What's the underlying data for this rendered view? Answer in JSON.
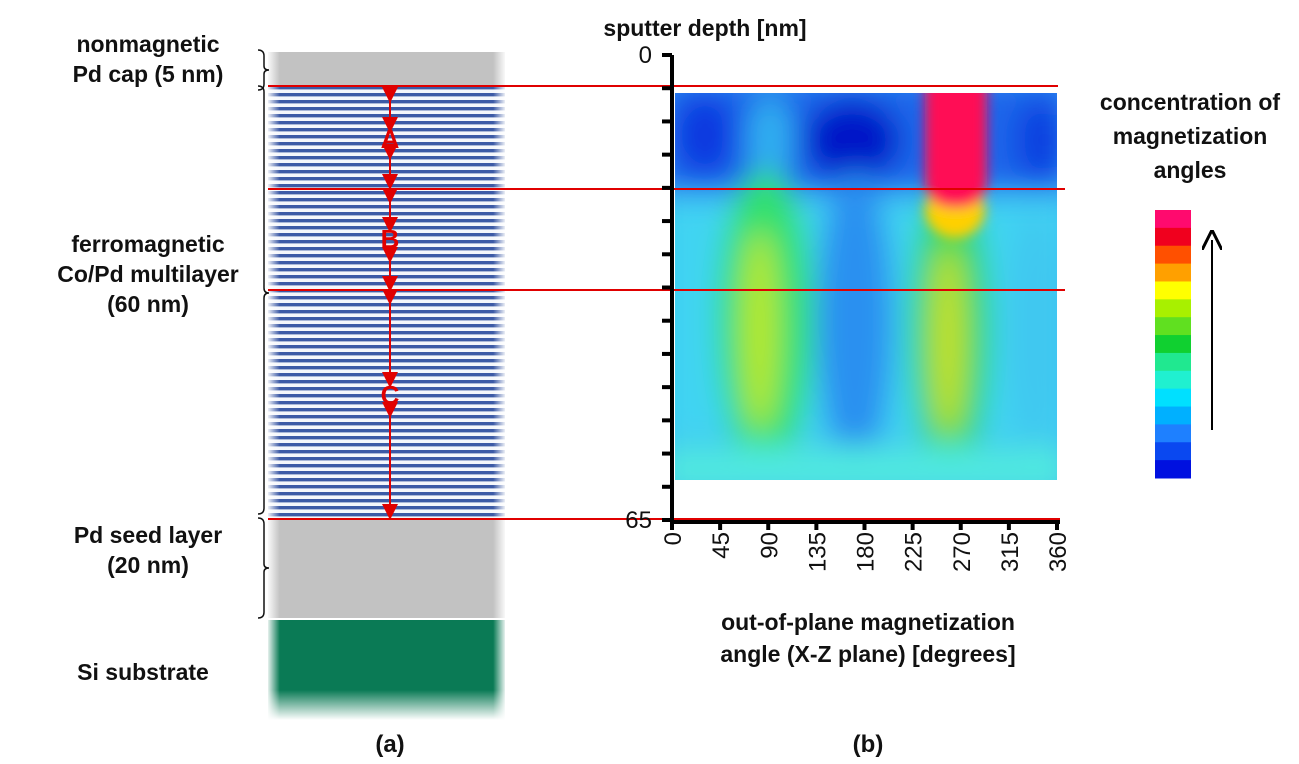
{
  "panel_a": {
    "labels": [
      {
        "lines": [
          "nonmagnetic",
          "Pd cap (5 nm)"
        ]
      },
      {
        "lines": [
          "ferromagnetic",
          "Co/Pd multilayer",
          "(60 nm)"
        ]
      },
      {
        "lines": [
          "Pd seed layer",
          "(20 nm)"
        ]
      },
      {
        "lines": [
          "Si substrate"
        ]
      }
    ],
    "regions": [
      "A",
      "B",
      "C"
    ],
    "caption": "(a)"
  },
  "panel_b": {
    "y_axis_title": "sputter depth [nm]",
    "ylim": [
      0,
      65
    ],
    "yticks": [
      0,
      65
    ],
    "xlim": [
      0,
      360
    ],
    "xticks": [
      0,
      45,
      90,
      135,
      180,
      225,
      270,
      315,
      360
    ],
    "x_axis_title": [
      "out-of-plane magnetization",
      "angle (X-Z plane) [degrees]"
    ],
    "colorbar_title": [
      "concentration of",
      "magnetization",
      "angles"
    ],
    "caption": "(b)"
  }
}
